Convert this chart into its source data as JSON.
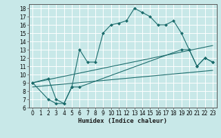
{
  "title": "",
  "xlabel": "Humidex (Indice chaleur)",
  "bg_color": "#c8e8e8",
  "grid_color": "#b0d0d0",
  "line_color": "#1a6b6b",
  "xlim": [
    -0.5,
    23.5
  ],
  "ylim": [
    6,
    18.5
  ],
  "xticks": [
    0,
    1,
    2,
    3,
    4,
    5,
    6,
    7,
    8,
    9,
    10,
    11,
    12,
    13,
    14,
    15,
    16,
    17,
    18,
    19,
    20,
    21,
    22,
    23
  ],
  "yticks": [
    6,
    7,
    8,
    9,
    10,
    11,
    12,
    13,
    14,
    15,
    16,
    17,
    18
  ],
  "line1_x": [
    0,
    2,
    3,
    4,
    5,
    6,
    7,
    8,
    9,
    10,
    11,
    12,
    13,
    14,
    15,
    16,
    17,
    18,
    19,
    20,
    21,
    22,
    23
  ],
  "line1_y": [
    9,
    9.5,
    7,
    6.5,
    8.5,
    13,
    11.5,
    11.5,
    15,
    16,
    16.2,
    16.5,
    18,
    17.5,
    17,
    16,
    16,
    16.5,
    15,
    13,
    11,
    12,
    11.5
  ],
  "line2_x": [
    0,
    2,
    3,
    4,
    5,
    6,
    19,
    20,
    21,
    22,
    23
  ],
  "line2_y": [
    9,
    7,
    6.5,
    6.5,
    8.5,
    8.5,
    13,
    13,
    11,
    12,
    11.5
  ],
  "line3_x": [
    0,
    23
  ],
  "line3_y": [
    9,
    13.5
  ],
  "line4_x": [
    0,
    23
  ],
  "line4_y": [
    8.5,
    10.5
  ]
}
